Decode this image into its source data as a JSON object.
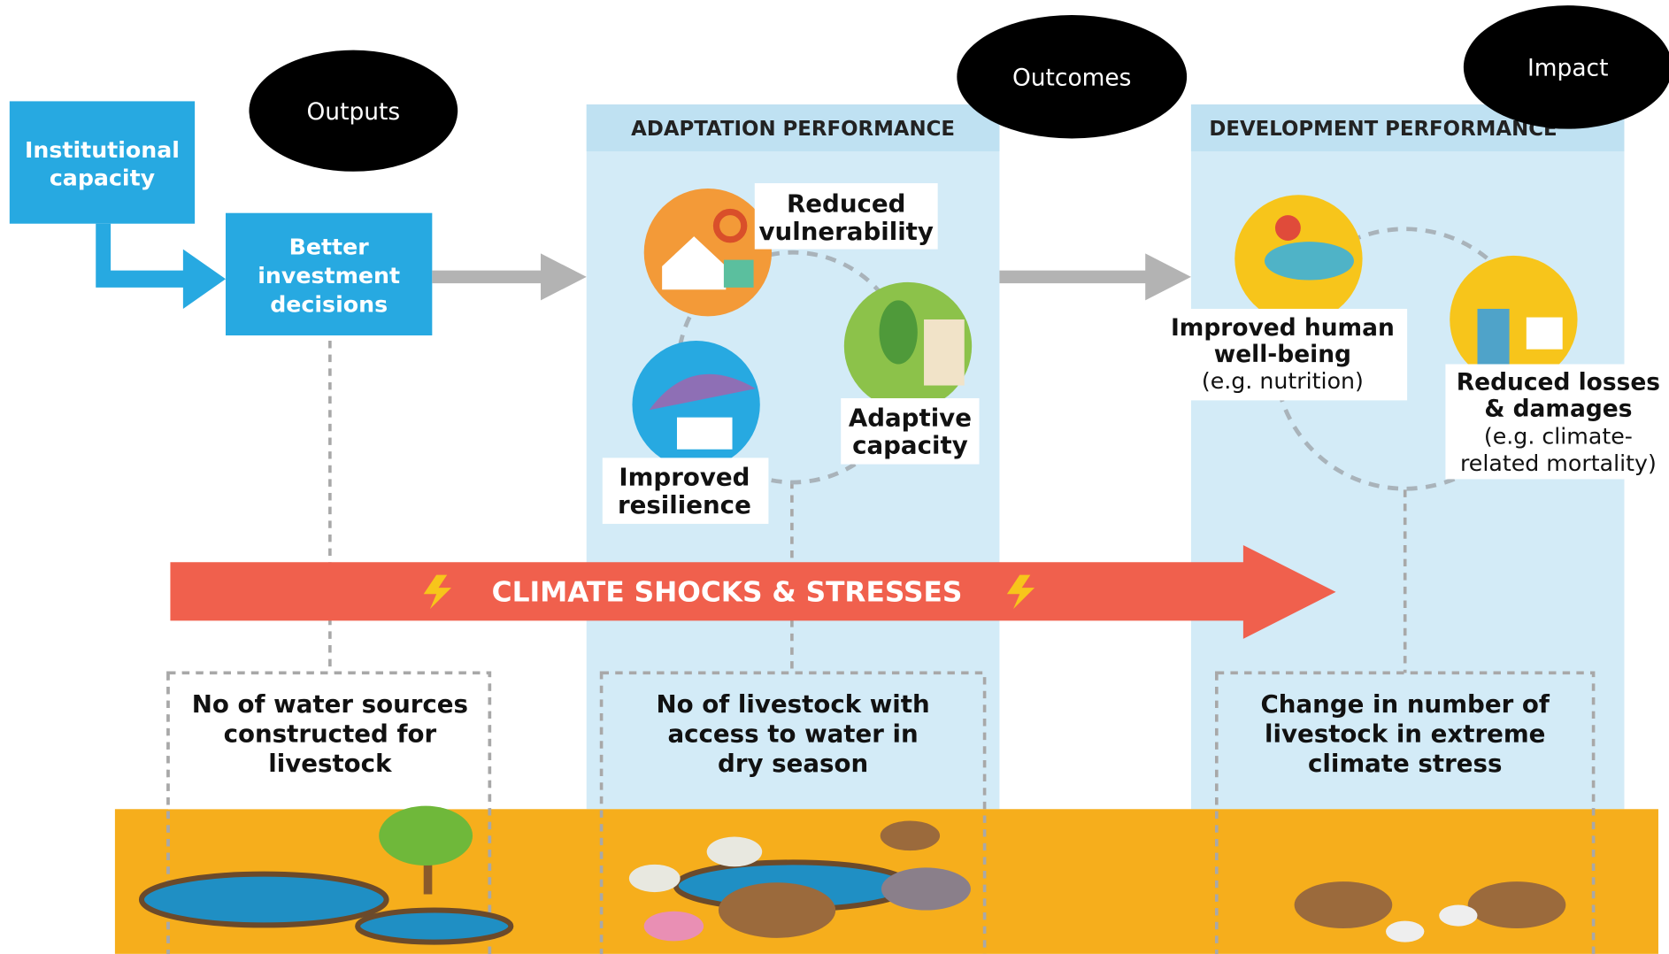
{
  "labels": {
    "outputs": "Outputs",
    "outcomes": "Outcomes",
    "impact": "Impact"
  },
  "boxes": {
    "institutional_capacity": [
      "Institutional",
      "capacity"
    ],
    "better_investment": [
      "Better",
      "investment",
      "decisions"
    ]
  },
  "panels": {
    "adaptation": {
      "title": "ADAPTATION PERFORMANCE",
      "items": [
        {
          "lines": [
            "Reduced",
            "vulnerability"
          ]
        },
        {
          "lines": [
            "Adaptive",
            "capacity"
          ]
        },
        {
          "lines": [
            "Improved",
            "resilience"
          ]
        }
      ]
    },
    "development": {
      "title": "DEVELOPMENT PERFORMANCE",
      "items": [
        {
          "lines": [
            "Improved human",
            "well-being"
          ],
          "note": [
            "(e.g. nutrition)"
          ]
        },
        {
          "lines": [
            "Reduced losses",
            "& damages"
          ],
          "note": [
            "(e.g. climate-",
            "related mortality)"
          ]
        }
      ]
    }
  },
  "climate_arrow": "CLIMATE SHOCKS & STRESSES",
  "indicators": [
    [
      "No of water sources",
      "constructed for",
      "livestock"
    ],
    [
      "No of livestock with",
      "access to water in",
      "dry season"
    ],
    [
      "Change in number of",
      "livestock in extreme",
      "climate stress"
    ]
  ]
}
